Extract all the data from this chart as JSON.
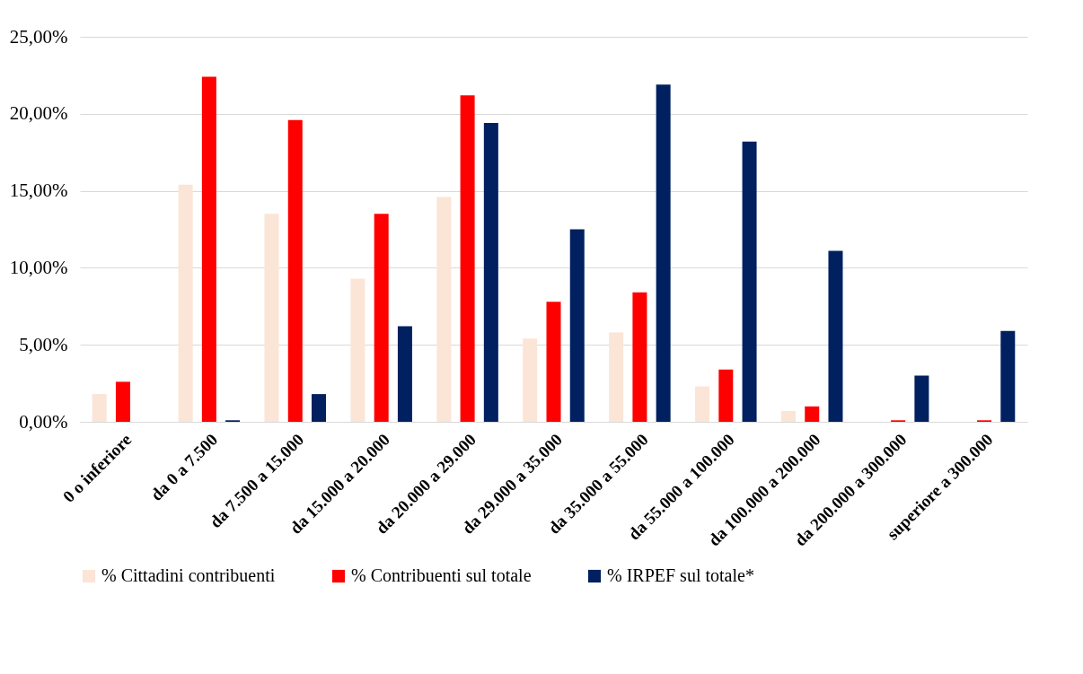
{
  "chart_data": {
    "type": "bar",
    "categories": [
      "0 o inferiore",
      "da 0 a 7.500",
      "da 7.500 a 15.000",
      "da 15.000 a 20.000",
      "da 20.000 a 29.000",
      "da 29.000 a 35.000",
      "da 35.000 a 55.000",
      "da 55.000 a 100.000",
      "da 100.000 a 200.000",
      "da 200.000 a 300.000",
      "superiore a 300.000"
    ],
    "series": [
      {
        "name": "% Cittadini contribuenti",
        "color": "#fbe5d6",
        "values": [
          1.8,
          15.4,
          13.5,
          9.3,
          14.6,
          5.4,
          5.8,
          2.3,
          0.7,
          0.0,
          0.0
        ]
      },
      {
        "name": "% Contribuenti sul totale",
        "color": "#ff0000",
        "values": [
          2.6,
          22.4,
          19.6,
          13.5,
          21.2,
          7.8,
          8.4,
          3.4,
          1.0,
          0.1,
          0.1
        ]
      },
      {
        "name": "% IRPEF sul totale*",
        "color": "#002060",
        "values": [
          0.0,
          0.1,
          1.8,
          6.2,
          19.4,
          12.5,
          21.9,
          18.2,
          11.1,
          3.0,
          5.9
        ]
      }
    ],
    "ylim": [
      0,
      25
    ],
    "yticks": [
      {
        "value": 0,
        "label": "0,00%"
      },
      {
        "value": 5,
        "label": "5,00%"
      },
      {
        "value": 10,
        "label": "10,00%"
      },
      {
        "value": 15,
        "label": "15,00%"
      },
      {
        "value": 20,
        "label": "20,00%"
      },
      {
        "value": 25,
        "label": "25,00%"
      }
    ],
    "grid": "y",
    "legend": "bottom"
  }
}
